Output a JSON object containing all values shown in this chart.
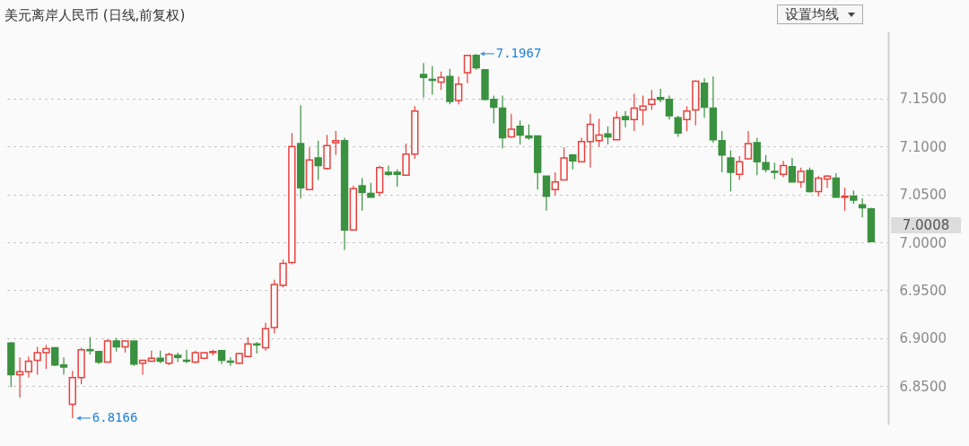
{
  "chart_data": {
    "type": "candlestick",
    "title": "美元离岸人民币 (日线,前复权)",
    "categories": [
      null,
      null,
      null,
      null,
      null,
      null,
      null,
      null,
      null,
      null,
      null,
      null,
      null,
      null,
      null,
      null,
      null,
      null,
      null,
      null,
      null,
      null,
      null,
      null,
      null,
      null,
      null,
      null,
      null,
      null,
      null,
      null,
      null,
      null,
      null,
      null,
      null,
      null,
      null,
      null,
      null,
      null,
      null,
      null,
      null,
      null,
      null,
      null,
      null,
      null,
      null,
      null,
      null,
      null,
      null,
      null,
      null,
      null,
      null,
      null,
      null,
      null,
      null,
      null,
      null,
      null,
      null,
      null,
      null,
      null,
      null,
      null,
      null,
      null,
      null,
      null,
      null,
      null,
      null,
      null,
      null,
      null,
      null,
      null,
      null,
      null,
      null,
      null,
      null,
      null,
      null,
      null,
      null,
      null,
      null,
      null,
      null,
      null,
      null
    ],
    "ohlc": [
      [
        6.895,
        6.896,
        6.849,
        6.862
      ],
      [
        6.862,
        6.88,
        6.838,
        6.865
      ],
      [
        6.865,
        6.881,
        6.859,
        6.876
      ],
      [
        6.877,
        6.891,
        6.862,
        6.885
      ],
      [
        6.885,
        6.893,
        6.868,
        6.889
      ],
      [
        6.89,
        6.89,
        6.871,
        6.872
      ],
      [
        6.872,
        6.88,
        6.862,
        6.87
      ],
      [
        6.831,
        6.866,
        6.8166,
        6.859
      ],
      [
        6.859,
        6.89,
        6.852,
        6.888
      ],
      [
        6.888,
        6.901,
        6.883,
        6.887
      ],
      [
        6.886,
        6.887,
        6.873,
        6.875
      ],
      [
        6.875,
        6.899,
        6.875,
        6.897
      ],
      [
        6.897,
        6.9,
        6.886,
        6.891
      ],
      [
        6.891,
        6.897,
        6.885,
        6.897
      ],
      [
        6.897,
        6.897,
        6.871,
        6.873
      ],
      [
        6.874,
        6.877,
        6.862,
        6.877
      ],
      [
        6.876,
        6.887,
        6.875,
        6.879
      ],
      [
        6.879,
        6.887,
        6.874,
        6.876
      ],
      [
        6.874,
        6.885,
        6.872,
        6.883
      ],
      [
        6.882,
        6.885,
        6.875,
        6.88
      ],
      [
        6.877,
        6.888,
        6.874,
        6.876
      ],
      [
        6.875,
        6.887,
        6.874,
        6.885
      ],
      [
        6.879,
        6.885,
        6.878,
        6.885
      ],
      [
        6.885,
        6.888,
        6.882,
        6.886
      ],
      [
        6.887,
        6.888,
        6.873,
        6.877
      ],
      [
        6.876,
        6.88,
        6.871,
        6.875
      ],
      [
        6.874,
        6.885,
        6.873,
        6.884
      ],
      [
        6.881,
        6.901,
        6.88,
        6.894
      ],
      [
        6.894,
        6.896,
        6.884,
        6.893
      ],
      [
        6.89,
        6.916,
        6.887,
        6.91
      ],
      [
        6.911,
        6.961,
        6.905,
        6.956
      ],
      [
        6.955,
        6.982,
        6.953,
        6.978
      ],
      [
        6.979,
        7.114,
        6.977,
        7.1
      ],
      [
        7.103,
        7.143,
        7.046,
        7.057
      ],
      [
        7.055,
        7.099,
        7.055,
        7.086
      ],
      [
        7.088,
        7.106,
        7.065,
        7.08
      ],
      [
        7.077,
        7.112,
        7.076,
        7.101
      ],
      [
        7.104,
        7.116,
        7.091,
        7.106
      ],
      [
        7.106,
        7.109,
        6.992,
        7.013
      ],
      [
        7.013,
        7.059,
        7.013,
        7.056
      ],
      [
        7.059,
        7.067,
        7.033,
        7.052
      ],
      [
        7.051,
        7.062,
        7.047,
        7.047
      ],
      [
        7.052,
        7.08,
        7.048,
        7.078
      ],
      [
        7.073,
        7.08,
        7.069,
        7.071
      ],
      [
        7.073,
        7.076,
        7.058,
        7.071
      ],
      [
        7.07,
        7.103,
        7.07,
        7.092
      ],
      [
        7.092,
        7.142,
        7.087,
        7.137
      ],
      [
        7.175,
        7.187,
        7.151,
        7.172
      ],
      [
        7.17,
        7.184,
        7.154,
        7.169
      ],
      [
        7.167,
        7.178,
        7.159,
        7.172
      ],
      [
        7.173,
        7.181,
        7.144,
        7.147
      ],
      [
        7.148,
        7.173,
        7.144,
        7.165
      ],
      [
        7.177,
        7.195,
        7.166,
        7.195
      ],
      [
        7.195,
        7.1967,
        7.18,
        7.182
      ],
      [
        7.18,
        7.18,
        7.148,
        7.149
      ],
      [
        7.149,
        7.153,
        7.124,
        7.141
      ],
      [
        7.14,
        7.153,
        7.098,
        7.109
      ],
      [
        7.11,
        7.134,
        7.109,
        7.118
      ],
      [
        7.121,
        7.127,
        7.102,
        7.112
      ],
      [
        7.111,
        7.123,
        7.107,
        7.109
      ],
      [
        7.111,
        7.111,
        7.055,
        7.073
      ],
      [
        7.069,
        7.069,
        7.033,
        7.048
      ],
      [
        7.055,
        7.073,
        7.049,
        7.063
      ],
      [
        7.065,
        7.099,
        7.065,
        7.088
      ],
      [
        7.091,
        7.092,
        7.076,
        7.085
      ],
      [
        7.084,
        7.109,
        7.084,
        7.105
      ],
      [
        7.105,
        7.134,
        7.078,
        7.123
      ],
      [
        7.106,
        7.129,
        7.1,
        7.112
      ],
      [
        7.113,
        7.121,
        7.102,
        7.11
      ],
      [
        7.107,
        7.137,
        7.107,
        7.13
      ],
      [
        7.131,
        7.137,
        7.12,
        7.128
      ],
      [
        7.128,
        7.155,
        7.116,
        7.14
      ],
      [
        7.138,
        7.153,
        7.122,
        7.142
      ],
      [
        7.144,
        7.159,
        7.138,
        7.149
      ],
      [
        7.151,
        7.16,
        7.146,
        7.149
      ],
      [
        7.149,
        7.153,
        7.128,
        7.132
      ],
      [
        7.13,
        7.132,
        7.11,
        7.114
      ],
      [
        7.128,
        7.142,
        7.116,
        7.137
      ],
      [
        7.138,
        7.169,
        7.122,
        7.168
      ],
      [
        7.166,
        7.171,
        7.13,
        7.141
      ],
      [
        7.14,
        7.173,
        7.104,
        7.107
      ],
      [
        7.106,
        7.116,
        7.073,
        7.091
      ],
      [
        7.088,
        7.096,
        7.053,
        7.073
      ],
      [
        7.071,
        7.09,
        7.065,
        7.084
      ],
      [
        7.087,
        7.116,
        7.087,
        7.103
      ],
      [
        7.104,
        7.109,
        7.07,
        7.084
      ],
      [
        7.083,
        7.091,
        7.073,
        7.076
      ],
      [
        7.074,
        7.083,
        7.066,
        7.073
      ],
      [
        7.071,
        7.085,
        7.068,
        7.08
      ],
      [
        7.079,
        7.088,
        7.063,
        7.063
      ],
      [
        7.063,
        7.078,
        7.057,
        7.074
      ],
      [
        7.075,
        7.078,
        7.052,
        7.053
      ],
      [
        7.053,
        7.069,
        7.048,
        7.067
      ],
      [
        7.066,
        7.07,
        7.057,
        7.069
      ],
      [
        7.067,
        7.072,
        7.047,
        7.047
      ],
      [
        7.047,
        7.057,
        7.033,
        7.048
      ],
      [
        7.048,
        7.054,
        7.04,
        7.044
      ],
      [
        7.039,
        7.046,
        7.026,
        7.036
      ],
      [
        7.035,
        7.036,
        7.0008,
        7.0008
      ]
    ],
    "colors": [
      "#3a913f",
      "#e8413c",
      "#e8413c",
      "#e8413c",
      "#e8413c",
      "#3a913f",
      "#3a913f",
      "#e8413c",
      "#e8413c",
      "#3a913f",
      "#3a913f",
      "#e8413c",
      "#3a913f",
      "#e8413c",
      "#3a913f",
      "#e8413c",
      "#e8413c",
      "#3a913f",
      "#e8413c",
      "#3a913f",
      "#3a913f",
      "#e8413c",
      "#e8413c",
      "#e8413c",
      "#3a913f",
      "#3a913f",
      "#e8413c",
      "#e8413c",
      "#3a913f",
      "#e8413c",
      "#e8413c",
      "#e8413c",
      "#e8413c",
      "#3a913f",
      "#e8413c",
      "#3a913f",
      "#e8413c",
      "#e8413c",
      "#3a913f",
      "#e8413c",
      "#3a913f",
      "#3a913f",
      "#e8413c",
      "#3a913f",
      "#3a913f",
      "#e8413c",
      "#e8413c",
      "#3a913f",
      "#3a913f",
      "#e8413c",
      "#3a913f",
      "#e8413c",
      "#e8413c",
      "#3a913f",
      "#3a913f",
      "#3a913f",
      "#3a913f",
      "#e8413c",
      "#3a913f",
      "#3a913f",
      "#3a913f",
      "#3a913f",
      "#e8413c",
      "#e8413c",
      "#3a913f",
      "#e8413c",
      "#e8413c",
      "#e8413c",
      "#3a913f",
      "#e8413c",
      "#3a913f",
      "#e8413c",
      "#e8413c",
      "#e8413c",
      "#3a913f",
      "#3a913f",
      "#3a913f",
      "#e8413c",
      "#e8413c",
      "#3a913f",
      "#3a913f",
      "#3a913f",
      "#3a913f",
      "#e8413c",
      "#e8413c",
      "#3a913f",
      "#3a913f",
      "#3a913f",
      "#e8413c",
      "#3a913f",
      "#e8413c",
      "#3a913f",
      "#e8413c",
      "#e8413c",
      "#3a913f",
      "#e8413c",
      "#3a913f",
      "#3a913f",
      "#3a913f"
    ],
    "ylim": [
      6.81,
      7.22
    ],
    "yticks": [
      {
        "value": 6.85,
        "label": "6.8500"
      },
      {
        "value": 6.9,
        "label": "6.9000"
      },
      {
        "value": 6.95,
        "label": "6.9500"
      },
      {
        "value": 7.0,
        "label": "7.0000"
      },
      {
        "value": 7.05,
        "label": "7.0500"
      },
      {
        "value": 7.1,
        "label": "7.1000"
      },
      {
        "value": 7.15,
        "label": "7.1500"
      }
    ],
    "grid": "y",
    "annotations": [
      "7.1967",
      "6.8166",
      "7.0008",
      "设置均线"
    ]
  }
}
